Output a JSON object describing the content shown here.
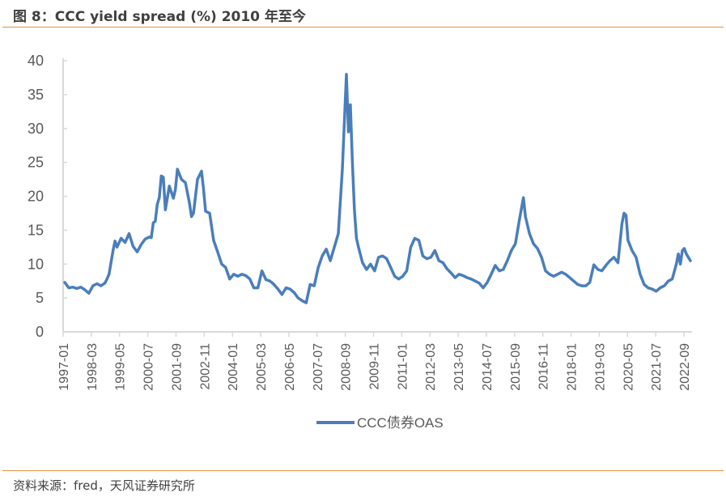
{
  "title": "图 8：CCC yield spread (%) 2010 年至今",
  "source": "资料来源：fred，天风证券研究所",
  "colors": {
    "line": "#4a7ebb",
    "axis": "#d9d9d9",
    "text": "#595959",
    "rule": "#e8913a"
  },
  "chart_data": {
    "type": "line",
    "title": "CCC yield spread (%) 2010 年至今",
    "xlabel": "",
    "ylabel": "",
    "ylim": [
      0,
      40
    ],
    "yticks": [
      "0",
      "5",
      "10",
      "15",
      "20",
      "25",
      "30",
      "35",
      "40"
    ],
    "xticks": [
      "1997-01",
      "1998-03",
      "1999-05",
      "2000-07",
      "2001-09",
      "2002-11",
      "2004-01",
      "2005-03",
      "2006-05",
      "2007-07",
      "2008-09",
      "2009-11",
      "2011-01",
      "2012-03",
      "2013-05",
      "2014-07",
      "2015-09",
      "2016-11",
      "2018-01",
      "2019-03",
      "2020-05",
      "2021-07",
      "2022-09"
    ],
    "grid": false,
    "legend": {
      "position": "bottom",
      "entries": [
        "CCC债券OAS"
      ]
    },
    "series": [
      {
        "name": "CCC债券OAS",
        "x": [
          "1997-01",
          "1997-03",
          "1997-05",
          "1997-07",
          "1997-09",
          "1997-11",
          "1998-01",
          "1998-03",
          "1998-05",
          "1998-07",
          "1998-09",
          "1998-10",
          "1998-11",
          "1999-01",
          "1999-02",
          "1999-03",
          "1999-05",
          "1999-07",
          "1999-09",
          "1999-11",
          "2000-01",
          "2000-03",
          "2000-05",
          "2000-07",
          "2000-08",
          "2000-09",
          "2000-10",
          "2000-11",
          "2000-12",
          "2001-01",
          "2001-02",
          "2001-03",
          "2001-05",
          "2001-07",
          "2001-08",
          "2001-09",
          "2001-11",
          "2002-01",
          "2002-03",
          "2002-04",
          "2002-05",
          "2002-07",
          "2002-09",
          "2002-10",
          "2002-11",
          "2003-01",
          "2003-03",
          "2003-05",
          "2003-07",
          "2003-09",
          "2003-11",
          "2004-01",
          "2004-03",
          "2004-05",
          "2004-07",
          "2004-09",
          "2004-11",
          "2005-01",
          "2005-03",
          "2005-05",
          "2005-07",
          "2005-09",
          "2005-11",
          "2006-01",
          "2006-03",
          "2006-05",
          "2006-07",
          "2006-09",
          "2006-11",
          "2007-01",
          "2007-03",
          "2007-05",
          "2007-07",
          "2007-09",
          "2007-11",
          "2008-01",
          "2008-03",
          "2008-05",
          "2008-07",
          "2008-09",
          "2008-10",
          "2008-11",
          "2008-12",
          "2009-01",
          "2009-02",
          "2009-03",
          "2009-05",
          "2009-07",
          "2009-09",
          "2009-11",
          "2010-01",
          "2010-03",
          "2010-05",
          "2010-07",
          "2010-09",
          "2010-11",
          "2011-01",
          "2011-03",
          "2011-05",
          "2011-07",
          "2011-09",
          "2011-11",
          "2012-01",
          "2012-03",
          "2012-05",
          "2012-07",
          "2012-09",
          "2012-11",
          "2013-01",
          "2013-03",
          "2013-05",
          "2013-07",
          "2013-09",
          "2013-11",
          "2014-01",
          "2014-03",
          "2014-05",
          "2014-07",
          "2014-09",
          "2014-11",
          "2015-01",
          "2015-03",
          "2015-05",
          "2015-07",
          "2015-09",
          "2015-11",
          "2016-01",
          "2016-02",
          "2016-04",
          "2016-06",
          "2016-08",
          "2016-10",
          "2016-12",
          "2017-02",
          "2017-04",
          "2017-06",
          "2017-08",
          "2017-10",
          "2017-12",
          "2018-02",
          "2018-04",
          "2018-06",
          "2018-08",
          "2018-10",
          "2018-12",
          "2019-02",
          "2019-04",
          "2019-06",
          "2019-08",
          "2019-10",
          "2019-12",
          "2020-02",
          "2020-03",
          "2020-04",
          "2020-05",
          "2020-07",
          "2020-09",
          "2020-11",
          "2021-01",
          "2021-03",
          "2021-05",
          "2021-07",
          "2021-09",
          "2021-11",
          "2022-01",
          "2022-03",
          "2022-05",
          "2022-06",
          "2022-07",
          "2022-08",
          "2022-09",
          "2022-10",
          "2022-12"
        ],
        "values": [
          7.3,
          6.5,
          6.6,
          6.4,
          6.6,
          6.2,
          5.7,
          6.8,
          7.1,
          6.8,
          7.2,
          7.8,
          8.5,
          12.0,
          13.4,
          12.5,
          13.8,
          13.2,
          14.5,
          12.6,
          11.8,
          12.9,
          13.7,
          14.0,
          13.9,
          16.1,
          16.3,
          18.8,
          19.8,
          23.0,
          22.8,
          18.0,
          21.5,
          19.7,
          21.0,
          24.0,
          22.5,
          22.0,
          19.0,
          17.0,
          17.5,
          22.5,
          23.7,
          21.0,
          17.8,
          17.5,
          13.5,
          11.8,
          10.0,
          9.5,
          7.8,
          8.5,
          8.2,
          8.5,
          8.3,
          7.8,
          6.5,
          6.5,
          9.0,
          7.7,
          7.5,
          7.0,
          6.3,
          5.5,
          6.5,
          6.3,
          5.8,
          5.0,
          4.6,
          4.3,
          7.0,
          6.8,
          9.5,
          11.2,
          12.2,
          10.5,
          12.5,
          14.5,
          24.0,
          38.0,
          29.5,
          33.5,
          25.0,
          18.0,
          13.8,
          12.5,
          10.2,
          9.2,
          10.0,
          9.0,
          11.0,
          11.2,
          10.8,
          9.5,
          8.2,
          7.8,
          8.2,
          9.0,
          12.5,
          13.8,
          13.5,
          11.2,
          10.8,
          11.0,
          12.0,
          10.5,
          10.2,
          9.3,
          8.7,
          8.0,
          8.5,
          8.3,
          8.0,
          7.8,
          7.5,
          7.2,
          6.5,
          7.3,
          8.5,
          9.8,
          9.0,
          9.2,
          10.5,
          12.0,
          13.0,
          16.5,
          19.8,
          17.0,
          14.5,
          13.0,
          12.3,
          11.0,
          9.0,
          8.5,
          8.2,
          8.5,
          8.8,
          8.5,
          8.0,
          7.5,
          7.0,
          6.8,
          6.8,
          7.3,
          9.9,
          9.2,
          9.0,
          9.8,
          10.5,
          11.0,
          10.2,
          16.0,
          17.5,
          17.2,
          13.5,
          12.0,
          11.0,
          8.5,
          7.0,
          6.5,
          6.3,
          6.0,
          6.5,
          6.8,
          7.5,
          7.8,
          10.0,
          11.5,
          10.0,
          12.0,
          12.3,
          11.5,
          10.5
        ]
      }
    ]
  }
}
